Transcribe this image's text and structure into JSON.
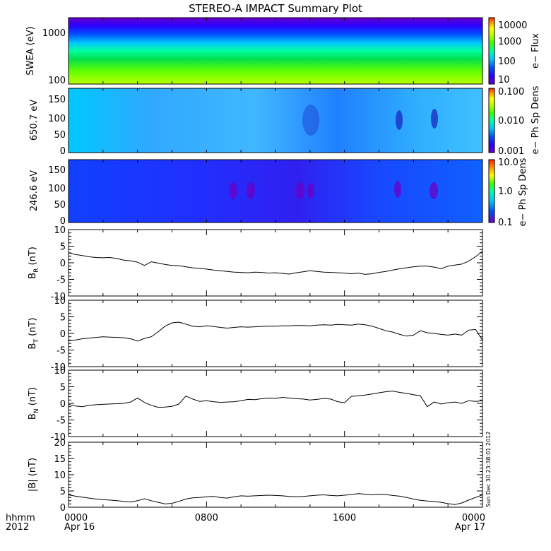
{
  "title": "STEREO-A IMPACT Summary Plot",
  "timestamp": "Sun Dec 30 23:38:01 2012",
  "x_axis": {
    "row1_label": "hhmm",
    "row2_label": "2012",
    "ticks": [
      {
        "hour": 0,
        "top": "0000",
        "bottom": "Apr 16"
      },
      {
        "hour": 8,
        "top": "0800",
        "bottom": ""
      },
      {
        "hour": 16,
        "top": "1600",
        "bottom": ""
      },
      {
        "hour": 24,
        "top": "0000",
        "bottom": "Apr 17"
      }
    ],
    "range_hours": [
      0,
      24
    ]
  },
  "colors": {
    "colorbar": [
      "#6a00c8",
      "#2a00ff",
      "#0050ff",
      "#00c8ff",
      "#00ffa0",
      "#40ff00",
      "#b8ff00",
      "#ffff00",
      "#ff9000",
      "#ff2000"
    ]
  },
  "chart_data": [
    {
      "type": "heatmap",
      "ylabel": "SWEA (eV)",
      "y_scale": "log",
      "ylim": [
        100,
        2000
      ],
      "yticks": [
        "1000",
        "100"
      ],
      "colorbar": {
        "label": "e− Flux",
        "scale": "log",
        "ticks": [
          "10000",
          "1000",
          "100",
          "10"
        ]
      }
    },
    {
      "type": "heatmap",
      "ylabel": "650.7 eV",
      "ylim": [
        0,
        180
      ],
      "yticks": [
        "150",
        "100",
        "50",
        "0"
      ],
      "colorbar": {
        "label": "e− Ph Sp Dens",
        "scale": "log",
        "ticks": [
          "0.100",
          "0.010",
          "0.001"
        ]
      }
    },
    {
      "type": "heatmap",
      "ylabel": "246.6 eV",
      "ylim": [
        0,
        180
      ],
      "yticks": [
        "150",
        "100",
        "50",
        "0"
      ],
      "colorbar": {
        "label": "e− Ph Sp Dens",
        "scale": "log",
        "ticks": [
          "10.0",
          "1.0",
          "0.1"
        ]
      }
    },
    {
      "type": "line",
      "ylabel": "B_R (nT)",
      "ylim": [
        -10,
        10
      ],
      "yticks": [
        "10",
        "5",
        "0",
        "-5",
        "-10"
      ],
      "x": [
        0,
        0.4,
        0.8,
        1.2,
        1.6,
        2.0,
        2.4,
        2.8,
        3.2,
        3.6,
        4.0,
        4.4,
        4.8,
        5.2,
        5.6,
        6.0,
        6.4,
        6.8,
        7.2,
        7.6,
        8.0,
        8.4,
        8.8,
        9.2,
        9.6,
        10.0,
        10.4,
        10.8,
        11.2,
        11.6,
        12.0,
        12.4,
        12.8,
        13.2,
        13.6,
        14.0,
        14.4,
        14.8,
        15.2,
        15.6,
        16.0,
        16.4,
        16.8,
        17.2,
        17.6,
        18.0,
        18.4,
        18.8,
        19.2,
        19.6,
        20.0,
        20.4,
        20.8,
        21.2,
        21.6,
        22.0,
        22.4,
        22.8,
        23.2,
        23.6,
        24.0
      ],
      "values": [
        3.0,
        2.5,
        2.2,
        1.8,
        1.6,
        1.5,
        1.6,
        1.3,
        0.8,
        0.6,
        0.2,
        -0.8,
        0.3,
        -0.1,
        -0.5,
        -0.8,
        -0.9,
        -1.2,
        -1.5,
        -1.7,
        -1.9,
        -2.2,
        -2.4,
        -2.6,
        -2.8,
        -2.9,
        -3.0,
        -2.8,
        -2.9,
        -3.1,
        -3.0,
        -3.2,
        -3.4,
        -3.0,
        -2.7,
        -2.4,
        -2.6,
        -2.8,
        -2.9,
        -3.0,
        -3.1,
        -3.3,
        -3.1,
        -3.5,
        -3.3,
        -2.9,
        -2.6,
        -2.2,
        -1.8,
        -1.5,
        -1.2,
        -1.0,
        -1.0,
        -1.3,
        -1.8,
        -1.0,
        -0.7,
        -0.4,
        0.5,
        1.8,
        3.5
      ]
    },
    {
      "type": "line",
      "ylabel": "B_T (nT)",
      "ylim": [
        -10,
        10
      ],
      "yticks": [
        "10",
        "5",
        "0",
        "-5",
        "-10"
      ],
      "x": [
        0,
        0.4,
        0.8,
        1.2,
        1.6,
        2.0,
        2.4,
        2.8,
        3.2,
        3.6,
        4.0,
        4.4,
        4.8,
        5.2,
        5.6,
        6.0,
        6.4,
        6.8,
        7.2,
        7.6,
        8.0,
        8.4,
        8.8,
        9.2,
        9.6,
        10.0,
        10.4,
        10.8,
        11.2,
        11.6,
        12.0,
        12.4,
        12.8,
        13.2,
        13.6,
        14.0,
        14.4,
        14.8,
        15.2,
        15.6,
        16.0,
        16.4,
        16.8,
        17.2,
        17.6,
        18.0,
        18.4,
        18.8,
        19.2,
        19.6,
        20.0,
        20.4,
        20.8,
        21.2,
        21.6,
        22.0,
        22.4,
        22.8,
        23.2,
        23.6,
        24.0
      ],
      "values": [
        -2.2,
        -2.0,
        -1.6,
        -1.4,
        -1.2,
        -1.0,
        -1.1,
        -1.2,
        -1.3,
        -1.6,
        -2.3,
        -1.5,
        -1.0,
        0.5,
        2.2,
        3.2,
        3.4,
        2.8,
        2.2,
        2.0,
        2.3,
        2.1,
        1.8,
        1.6,
        1.8,
        2.0,
        1.9,
        2.0,
        2.1,
        2.2,
        2.2,
        2.3,
        2.3,
        2.4,
        2.4,
        2.3,
        2.5,
        2.6,
        2.5,
        2.7,
        2.6,
        2.5,
        2.8,
        2.6,
        2.2,
        1.5,
        0.8,
        0.4,
        -0.3,
        -0.8,
        -0.5,
        0.8,
        0.2,
        0.0,
        -0.3,
        -0.5,
        -0.2,
        -0.5,
        1.0,
        1.2,
        -2.0
      ]
    },
    {
      "type": "line",
      "ylabel": "B_N (nT)",
      "ylim": [
        -10,
        10
      ],
      "yticks": [
        "10",
        "5",
        "0",
        "-5",
        "-10"
      ],
      "x": [
        0,
        0.4,
        0.8,
        1.2,
        1.6,
        2.0,
        2.4,
        2.8,
        3.2,
        3.6,
        4.0,
        4.4,
        4.8,
        5.2,
        5.6,
        6.0,
        6.4,
        6.8,
        7.2,
        7.6,
        8.0,
        8.4,
        8.8,
        9.2,
        9.6,
        10.0,
        10.4,
        10.8,
        11.2,
        11.6,
        12.0,
        12.4,
        12.8,
        13.2,
        13.6,
        14.0,
        14.4,
        14.8,
        15.2,
        15.6,
        16.0,
        16.4,
        16.8,
        17.2,
        17.6,
        18.0,
        18.4,
        18.8,
        19.2,
        19.6,
        20.0,
        20.4,
        20.8,
        21.2,
        21.6,
        22.0,
        22.4,
        22.8,
        23.2,
        23.6,
        24.0
      ],
      "values": [
        -0.3,
        -0.8,
        -1.0,
        -0.6,
        -0.4,
        -0.3,
        -0.2,
        -0.1,
        0.0,
        0.4,
        1.6,
        0.3,
        -0.6,
        -1.2,
        -1.1,
        -0.9,
        -0.2,
        2.2,
        1.3,
        0.6,
        0.8,
        0.5,
        0.3,
        0.4,
        0.5,
        0.8,
        1.2,
        1.1,
        1.4,
        1.6,
        1.5,
        1.8,
        1.6,
        1.4,
        1.3,
        1.0,
        1.2,
        1.5,
        1.3,
        0.5,
        0.2,
        2.1,
        2.3,
        2.5,
        2.8,
        3.2,
        3.5,
        3.7,
        3.3,
        3.0,
        2.6,
        2.3,
        -1.0,
        0.4,
        -0.2,
        0.2,
        0.4,
        0.0,
        0.8,
        0.6,
        0.8
      ]
    },
    {
      "type": "line",
      "ylabel": "|B| (nT)",
      "ylim": [
        0,
        20
      ],
      "yticks": [
        "20",
        "15",
        "10",
        "5",
        "0"
      ],
      "x": [
        0,
        0.4,
        0.8,
        1.2,
        1.6,
        2.0,
        2.4,
        2.8,
        3.2,
        3.6,
        4.0,
        4.4,
        4.8,
        5.2,
        5.6,
        6.0,
        6.4,
        6.8,
        7.2,
        7.6,
        8.0,
        8.4,
        8.8,
        9.2,
        9.6,
        10.0,
        10.4,
        10.8,
        11.2,
        11.6,
        12.0,
        12.4,
        12.8,
        13.2,
        13.6,
        14.0,
        14.4,
        14.8,
        15.2,
        15.6,
        16.0,
        16.4,
        16.8,
        17.2,
        17.6,
        18.0,
        18.4,
        18.8,
        19.2,
        19.6,
        20.0,
        20.4,
        20.8,
        21.2,
        21.6,
        22.0,
        22.4,
        22.8,
        23.2,
        23.6,
        24.0
      ],
      "values": [
        3.8,
        3.4,
        3.1,
        2.8,
        2.5,
        2.3,
        2.2,
        2.0,
        1.8,
        1.6,
        2.0,
        2.6,
        2.0,
        1.5,
        1.0,
        1.2,
        1.8,
        2.5,
        2.9,
        3.0,
        3.2,
        3.3,
        3.0,
        2.8,
        3.2,
        3.5,
        3.4,
        3.5,
        3.6,
        3.7,
        3.6,
        3.5,
        3.3,
        3.2,
        3.3,
        3.5,
        3.7,
        3.8,
        3.6,
        3.5,
        3.7,
        3.9,
        4.2,
        4.0,
        3.8,
        4.0,
        3.9,
        3.6,
        3.4,
        3.0,
        2.5,
        2.1,
        1.9,
        1.8,
        1.5,
        1.1,
        0.8,
        1.3,
        2.2,
        3.0,
        3.8
      ]
    }
  ]
}
